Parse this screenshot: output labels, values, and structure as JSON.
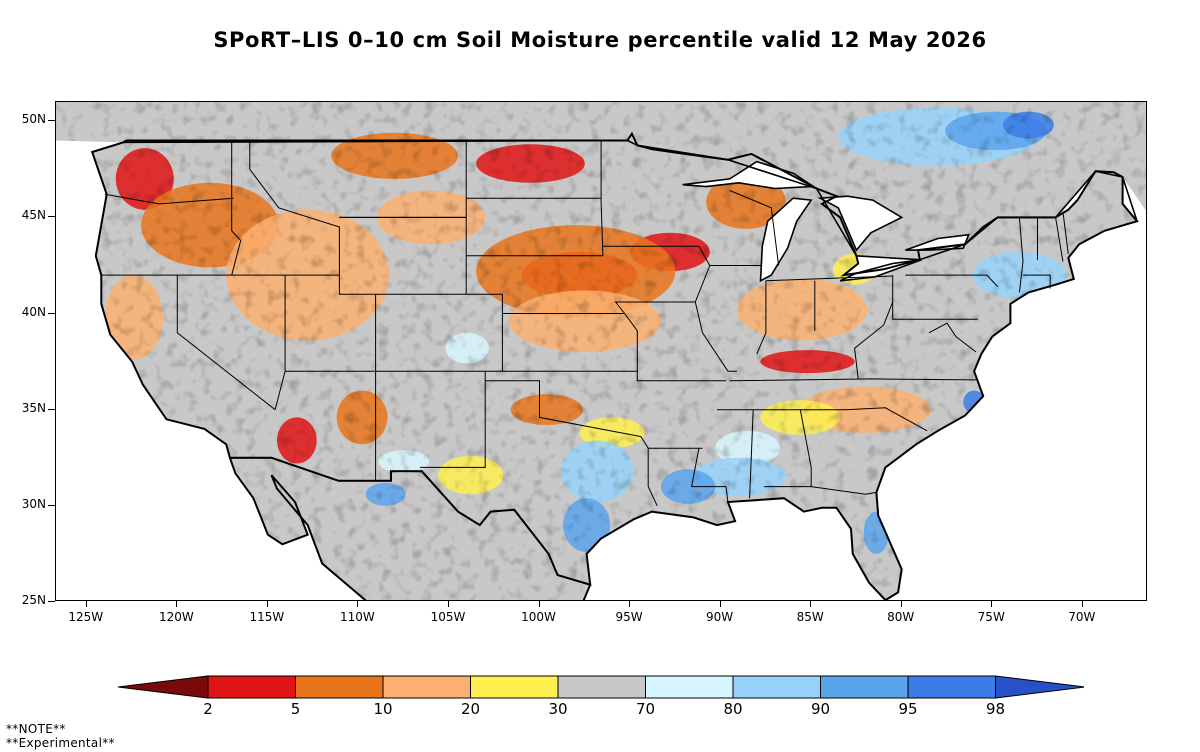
{
  "title": "SPoRT–LIS 0–10 cm Soil Moisture percentile valid 12 May 2026",
  "map": {
    "latitude_labels": [
      "50N",
      "45N",
      "40N",
      "35N",
      "30N",
      "25N"
    ],
    "longitude_labels": [
      "125W",
      "120W",
      "115W",
      "110W",
      "105W",
      "100W",
      "95W",
      "90W",
      "85W",
      "80W",
      "75W",
      "70W"
    ],
    "latitudes": [
      50,
      45,
      40,
      35,
      30,
      25
    ],
    "longitudes": [
      -125,
      -120,
      -115,
      -110,
      -105,
      -100,
      -95,
      -90,
      -85,
      -80,
      -75,
      -70
    ],
    "extent": {
      "lon_min": -126.7,
      "lon_max": -66.4,
      "lat_min": 25.0,
      "lat_max": 51.0
    },
    "land_base_color": "#c8c8c8",
    "water_color": "#ffffff",
    "boundary_color": "#000000",
    "regions": [
      {
        "category": "2-5",
        "lon": -97.8,
        "lat": 42.0,
        "rlon": 3.2,
        "rlat": 1.2
      },
      {
        "category": "2-5",
        "lon": -92.8,
        "lat": 43.2,
        "rlon": 2.2,
        "rlat": 1.0
      },
      {
        "category": "2-5",
        "lon": -100.5,
        "lat": 47.8,
        "rlon": 3.0,
        "rlat": 1.0
      },
      {
        "category": "2-5",
        "lon": -121.8,
        "lat": 47.0,
        "rlon": 1.6,
        "rlat": 1.6
      },
      {
        "category": "2-5",
        "lon": -113.4,
        "lat": 33.4,
        "rlon": 1.1,
        "rlat": 1.2
      },
      {
        "category": "2-5",
        "lon": -85.2,
        "lat": 37.5,
        "rlon": 2.6,
        "rlat": 0.6
      },
      {
        "category": "5-10",
        "lon": -98.0,
        "lat": 42.2,
        "rlon": 5.5,
        "rlat": 2.4
      },
      {
        "category": "5-10",
        "lon": -118.2,
        "lat": 44.6,
        "rlon": 3.8,
        "rlat": 2.2
      },
      {
        "category": "5-10",
        "lon": -108.0,
        "lat": 48.2,
        "rlon": 3.5,
        "rlat": 1.2
      },
      {
        "category": "5-10",
        "lon": -88.6,
        "lat": 45.8,
        "rlon": 2.2,
        "rlat": 1.4
      },
      {
        "category": "5-10",
        "lon": -109.8,
        "lat": 34.6,
        "rlon": 1.4,
        "rlat": 1.4
      },
      {
        "category": "5-10",
        "lon": -99.6,
        "lat": 35.0,
        "rlon": 2.0,
        "rlat": 0.8
      },
      {
        "category": "10-20",
        "lon": -112.8,
        "lat": 42.0,
        "rlon": 4.5,
        "rlat": 3.4
      },
      {
        "category": "10-20",
        "lon": -97.5,
        "lat": 39.6,
        "rlon": 4.2,
        "rlat": 1.6
      },
      {
        "category": "10-20",
        "lon": -85.5,
        "lat": 40.2,
        "rlon": 3.6,
        "rlat": 1.6
      },
      {
        "category": "10-20",
        "lon": -82.0,
        "lat": 35.0,
        "rlon": 3.6,
        "rlat": 1.2
      },
      {
        "category": "10-20",
        "lon": -122.4,
        "lat": 39.8,
        "rlon": 1.6,
        "rlat": 2.2
      },
      {
        "category": "10-20",
        "lon": -106.0,
        "lat": 45.0,
        "rlon": 3.0,
        "rlat": 1.4
      },
      {
        "category": "20-30",
        "lon": -103.8,
        "lat": 31.6,
        "rlon": 1.8,
        "rlat": 1.0
      },
      {
        "category": "20-30",
        "lon": -96.0,
        "lat": 33.8,
        "rlon": 1.8,
        "rlat": 0.8
      },
      {
        "category": "20-30",
        "lon": -85.6,
        "lat": 34.6,
        "rlon": 2.2,
        "rlat": 0.9
      },
      {
        "category": "20-30",
        "lon": -82.6,
        "lat": 42.3,
        "rlon": 1.2,
        "rlat": 0.8
      },
      {
        "category": "70-80",
        "lon": -104.0,
        "lat": 38.2,
        "rlon": 1.2,
        "rlat": 0.8
      },
      {
        "category": "70-80",
        "lon": -107.5,
        "lat": 32.3,
        "rlon": 1.4,
        "rlat": 0.6
      },
      {
        "category": "70-80",
        "lon": -88.5,
        "lat": 33.0,
        "rlon": 1.8,
        "rlat": 0.9
      },
      {
        "category": "80-90",
        "lon": -89.0,
        "lat": 31.5,
        "rlon": 2.6,
        "rlat": 1.0
      },
      {
        "category": "80-90",
        "lon": -73.5,
        "lat": 42.0,
        "rlon": 2.6,
        "rlat": 1.2
      },
      {
        "category": "80-90",
        "lon": -96.8,
        "lat": 31.8,
        "rlon": 2.0,
        "rlat": 1.6
      },
      {
        "category": "80-90",
        "lon": -78.0,
        "lat": 49.2,
        "rlon": 5.5,
        "rlat": 1.5
      },
      {
        "category": "90-95",
        "lon": -97.4,
        "lat": 29.0,
        "rlon": 1.3,
        "rlat": 1.4
      },
      {
        "category": "90-95",
        "lon": -91.8,
        "lat": 31.0,
        "rlon": 1.5,
        "rlat": 0.9
      },
      {
        "category": "90-95",
        "lon": -108.5,
        "lat": 30.6,
        "rlon": 1.1,
        "rlat": 0.6
      },
      {
        "category": "90-95",
        "lon": -81.4,
        "lat": 28.6,
        "rlon": 0.7,
        "rlat": 1.1
      },
      {
        "category": "90-95",
        "lon": -74.8,
        "lat": 49.5,
        "rlon": 2.8,
        "rlat": 1.0
      },
      {
        "category": "95-98",
        "lon": -73.0,
        "lat": 49.8,
        "rlon": 1.4,
        "rlat": 0.7
      },
      {
        "category": "95-98",
        "lon": -76.0,
        "lat": 35.4,
        "rlon": 0.6,
        "rlat": 0.6
      }
    ]
  },
  "colorbar": {
    "label_text": [
      "2",
      "5",
      "10",
      "20",
      "30",
      "70",
      "80",
      "90",
      "95",
      "98"
    ],
    "bins": [
      {
        "range": "<2",
        "color": "#7a0a0a"
      },
      {
        "range": "2-5",
        "color": "#e01414"
      },
      {
        "range": "5-10",
        "color": "#e8741c"
      },
      {
        "range": "10-20",
        "color": "#fcb070"
      },
      {
        "range": "20-30",
        "color": "#fef050"
      },
      {
        "range": "30-70",
        "color": "#c8c8c8"
      },
      {
        "range": "70-80",
        "color": "#d8f6ff"
      },
      {
        "range": "80-90",
        "color": "#96d2fa"
      },
      {
        "range": "90-95",
        "color": "#5aa4ec"
      },
      {
        "range": "95-98",
        "color": "#3c7ce6"
      },
      {
        "range": ">98",
        "color": "#2850c8"
      }
    ]
  },
  "notes": [
    "**NOTE**",
    "**Experimental**"
  ]
}
